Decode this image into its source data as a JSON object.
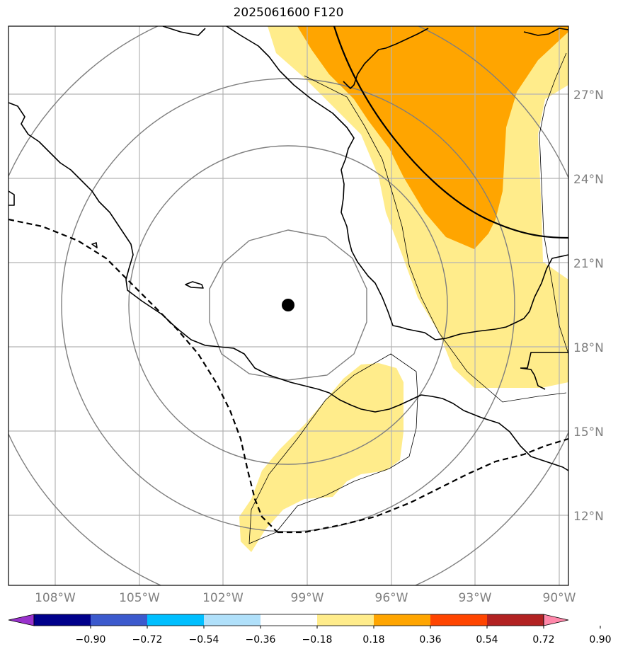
{
  "title": "2025061600 F120",
  "map": {
    "lon_labels": [
      "108°W",
      "105°W",
      "102°W",
      "99°W",
      "96°W",
      "93°W",
      "90°W"
    ],
    "lat_labels": [
      "27°N",
      "24°N",
      "21°N",
      "18°N",
      "15°N",
      "12°N"
    ],
    "center_marker": {
      "lon": -99.7,
      "lat": 19.4
    }
  },
  "colorbar": {
    "labels": [
      "−0.90",
      "−0.72",
      "−0.54",
      "−0.36",
      "−0.18",
      "0.18",
      "0.36",
      "0.54",
      "0.72",
      "0.90"
    ],
    "colors": [
      "#9932cc",
      "#00008b",
      "#3c5acd",
      "#00bfff",
      "#b0e0fa",
      "#ffffff",
      "#ffec8b",
      "#ffa500",
      "#ff4500",
      "#b22222",
      "#ff88aa"
    ]
  }
}
